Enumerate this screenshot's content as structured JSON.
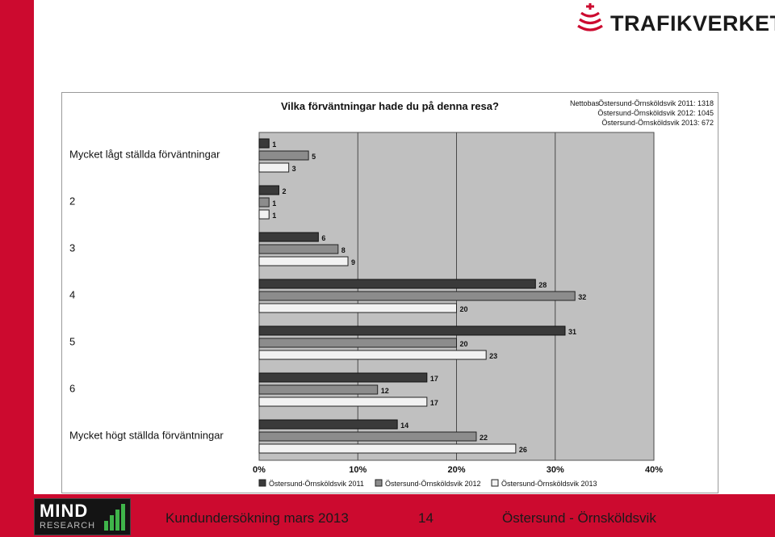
{
  "brand": {
    "name": "TRAFIKVERKET"
  },
  "footer": {
    "logo_word": "MIND",
    "logo_sub": "RESEARCH",
    "survey": "Kundundersökning mars 2013",
    "page_number": "14",
    "route": "Östersund - Örnsköldsvik"
  },
  "colors": {
    "brand_red": "#cc0a2f",
    "plot_bg": "#c0c0c0",
    "series_2011": "#3a3a3a",
    "series_2012": "#8c8c8c",
    "series_2013": "#f2f2f2"
  },
  "chart_data": {
    "type": "bar",
    "orientation": "horizontal",
    "title": "Vilka förväntningar hade du på denna resa?",
    "nettobas_label": "Nettobas",
    "nettobas": [
      "Östersund-Örnsköldsvik 2011: 1318",
      "Östersund-Örnsköldsvik 2012: 1045",
      "Östersund-Örnsköldsvik 2013: 672"
    ],
    "categories": [
      "Mycket lågt ställda förväntningar",
      "2",
      "3",
      "4",
      "5",
      "6",
      "Mycket högt ställda förväntningar"
    ],
    "series": [
      {
        "name": "Östersund-Örnsköldsvik 2011",
        "values": [
          1,
          2,
          6,
          28,
          31,
          17,
          14
        ]
      },
      {
        "name": "Östersund-Örnsköldsvik 2012",
        "values": [
          5,
          1,
          8,
          32,
          20,
          12,
          22
        ]
      },
      {
        "name": "Östersund-Örnsköldsvik 2013",
        "values": [
          3,
          1,
          9,
          20,
          23,
          17,
          26
        ]
      }
    ],
    "xlim": [
      0,
      40
    ],
    "xticks": [
      0,
      10,
      20,
      30,
      40
    ],
    "xtick_labels": [
      "0%",
      "10%",
      "20%",
      "30%",
      "40%"
    ],
    "grid": true,
    "legend": "bottom"
  }
}
